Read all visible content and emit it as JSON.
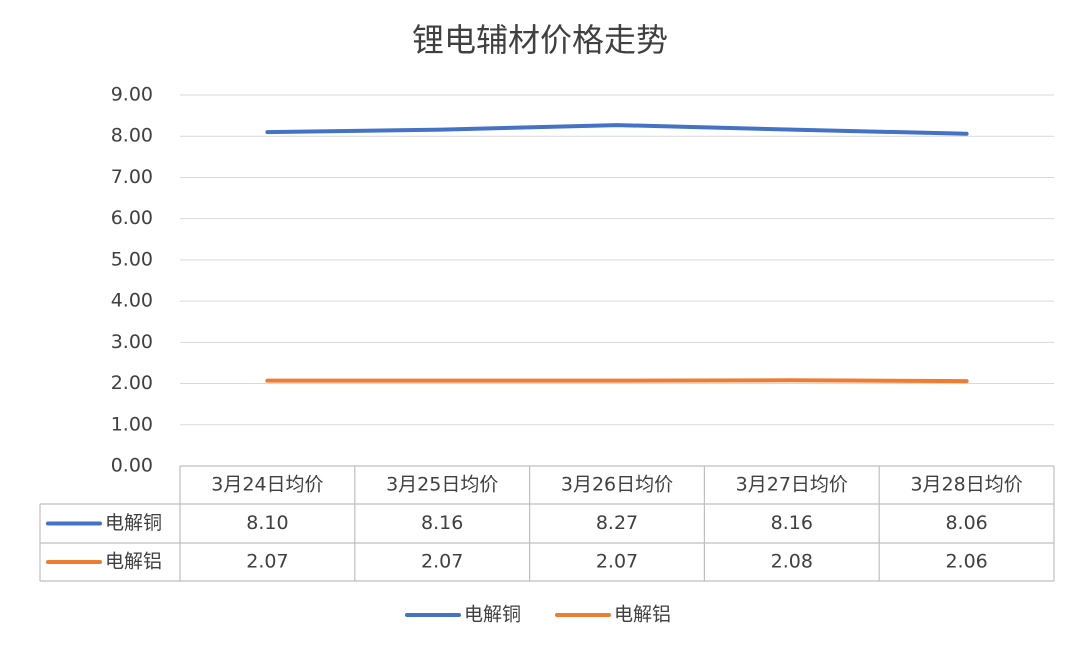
{
  "chart_data": {
    "type": "line",
    "title": "锂电辅材价格走势",
    "categories": [
      "3月24日均价",
      "3月25日均价",
      "3月26日均价",
      "3月27日均价",
      "3月28日均价"
    ],
    "series": [
      {
        "name": "电解铜",
        "color": "#4472c4",
        "values": [
          8.1,
          8.16,
          8.27,
          8.16,
          8.06
        ],
        "value_labels": [
          "8.10",
          "8.16",
          "8.27",
          "8.16",
          "8.06"
        ]
      },
      {
        "name": "电解铝",
        "color": "#ed7d31",
        "values": [
          2.07,
          2.07,
          2.07,
          2.08,
          2.06
        ],
        "value_labels": [
          "2.07",
          "2.07",
          "2.07",
          "2.08",
          "2.06"
        ]
      }
    ],
    "ylim": [
      0,
      9
    ],
    "yticks": [
      {
        "value": 0,
        "label": "0.00"
      },
      {
        "value": 1,
        "label": "1.00"
      },
      {
        "value": 2,
        "label": "2.00"
      },
      {
        "value": 3,
        "label": "3.00"
      },
      {
        "value": 4,
        "label": "4.00"
      },
      {
        "value": 5,
        "label": "5.00"
      },
      {
        "value": 6,
        "label": "6.00"
      },
      {
        "value": 7,
        "label": "7.00"
      },
      {
        "value": 8,
        "label": "8.00"
      },
      {
        "value": 9,
        "label": "9.00"
      }
    ],
    "grid": true,
    "legend": "bottom",
    "data_table": true
  }
}
